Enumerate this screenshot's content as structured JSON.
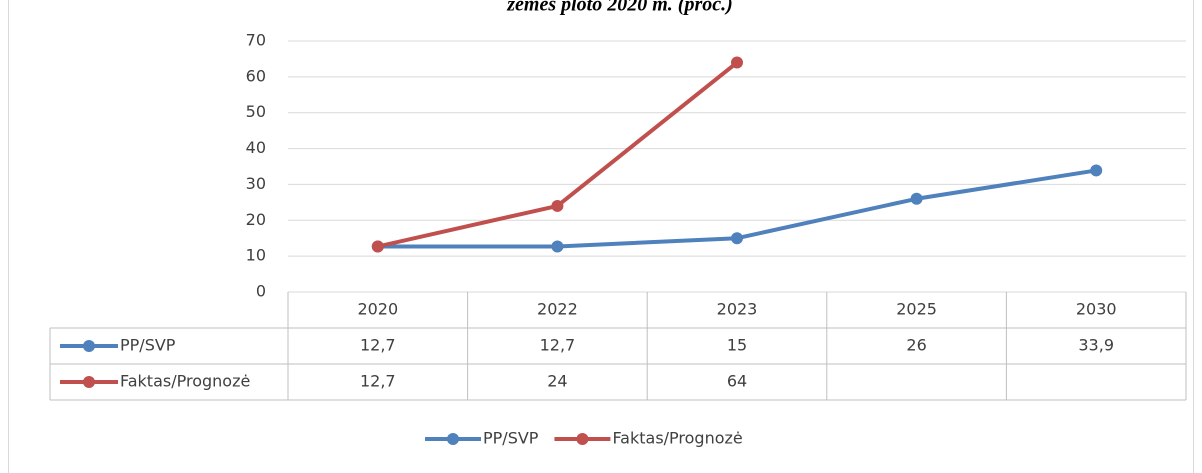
{
  "chart_data": {
    "type": "line",
    "title": "žemės ploto 2020 m. (proc.)",
    "categories": [
      "2020",
      "2022",
      "2023",
      "2025",
      "2030"
    ],
    "series": [
      {
        "name": "PP/SVP",
        "color": "#4f81bd",
        "values": [
          12.7,
          12.7,
          15,
          26,
          33.9
        ],
        "value_labels": [
          "12,7",
          "12,7",
          "15",
          "26",
          "33,9"
        ]
      },
      {
        "name": "Faktas/Prognozė",
        "color": "#c0504d",
        "values": [
          12.7,
          24,
          64,
          null,
          null
        ],
        "value_labels": [
          "12,7",
          "24",
          "64",
          null,
          null
        ]
      }
    ],
    "ylim": [
      0,
      70
    ],
    "yticks": [
      0,
      10,
      20,
      30,
      40,
      50,
      60,
      70
    ],
    "grid": true,
    "legend": "bottom"
  }
}
